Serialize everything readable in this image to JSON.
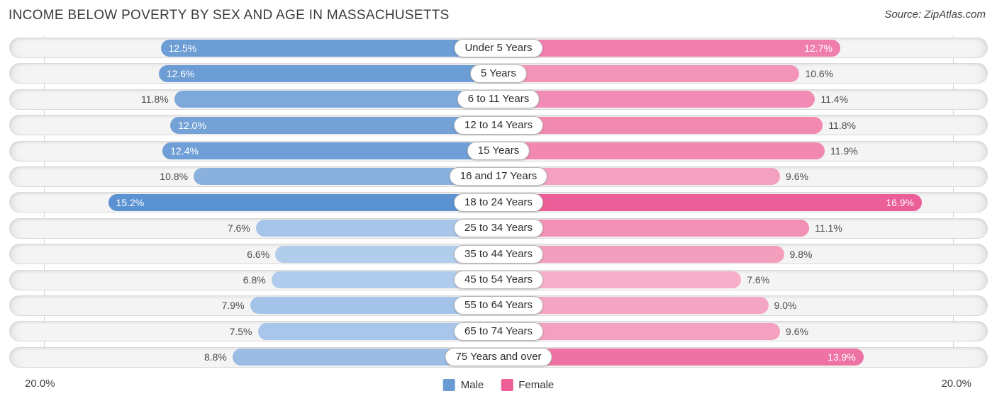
{
  "title": "INCOME BELOW POVERTY BY SEX AND AGE IN MASSACHUSETTS",
  "source": "Source: ZipAtlas.com",
  "axis": {
    "left_label": "20.0%",
    "right_label": "20.0%",
    "max_percent": 20.0
  },
  "legend": [
    {
      "label": "Male",
      "color": "#6a9ad4"
    },
    {
      "label": "Female",
      "color": "#ee5f97"
    }
  ],
  "chart_data": {
    "type": "bar",
    "variant": "diverging-horizontal-pyramid",
    "unit": "%",
    "axis_range_percent": [
      0,
      20
    ],
    "categories": [
      "Under 5 Years",
      "5 Years",
      "6 to 11 Years",
      "12 to 14 Years",
      "15 Years",
      "16 and 17 Years",
      "18 to 24 Years",
      "25 to 34 Years",
      "35 to 44 Years",
      "45 to 54 Years",
      "55 to 64 Years",
      "65 to 74 Years",
      "75 Years and over"
    ],
    "series": [
      {
        "name": "Male",
        "side": "left",
        "values": [
          12.5,
          12.6,
          11.8,
          12.0,
          12.4,
          10.8,
          15.2,
          7.6,
          6.6,
          6.8,
          7.9,
          7.5,
          8.8
        ],
        "colors": [
          "#6d9dd5",
          "#6d9dd5",
          "#7da8da",
          "#74a2d7",
          "#6f9fd6",
          "#8ab0de",
          "#5b92d2",
          "#a6c5e9",
          "#b1cdec",
          "#afccec",
          "#a3c3e8",
          "#a7c6ea",
          "#9bbde4"
        ]
      },
      {
        "name": "Female",
        "side": "right",
        "values": [
          12.7,
          10.6,
          11.4,
          11.8,
          11.9,
          9.6,
          16.9,
          11.1,
          9.8,
          7.6,
          9.0,
          9.6,
          13.9
        ],
        "colors": [
          "#f07ead",
          "#f395b9",
          "#f28cb4",
          "#f189b1",
          "#f188b0",
          "#f4a0c0",
          "#ec5e97",
          "#f290b6",
          "#f49ebe",
          "#f6aeca",
          "#f5a5c4",
          "#f4a0c0",
          "#ee72a3"
        ]
      }
    ],
    "value_labels": {
      "format": "{value}%",
      "inside_threshold_percent": 12.0
    }
  }
}
